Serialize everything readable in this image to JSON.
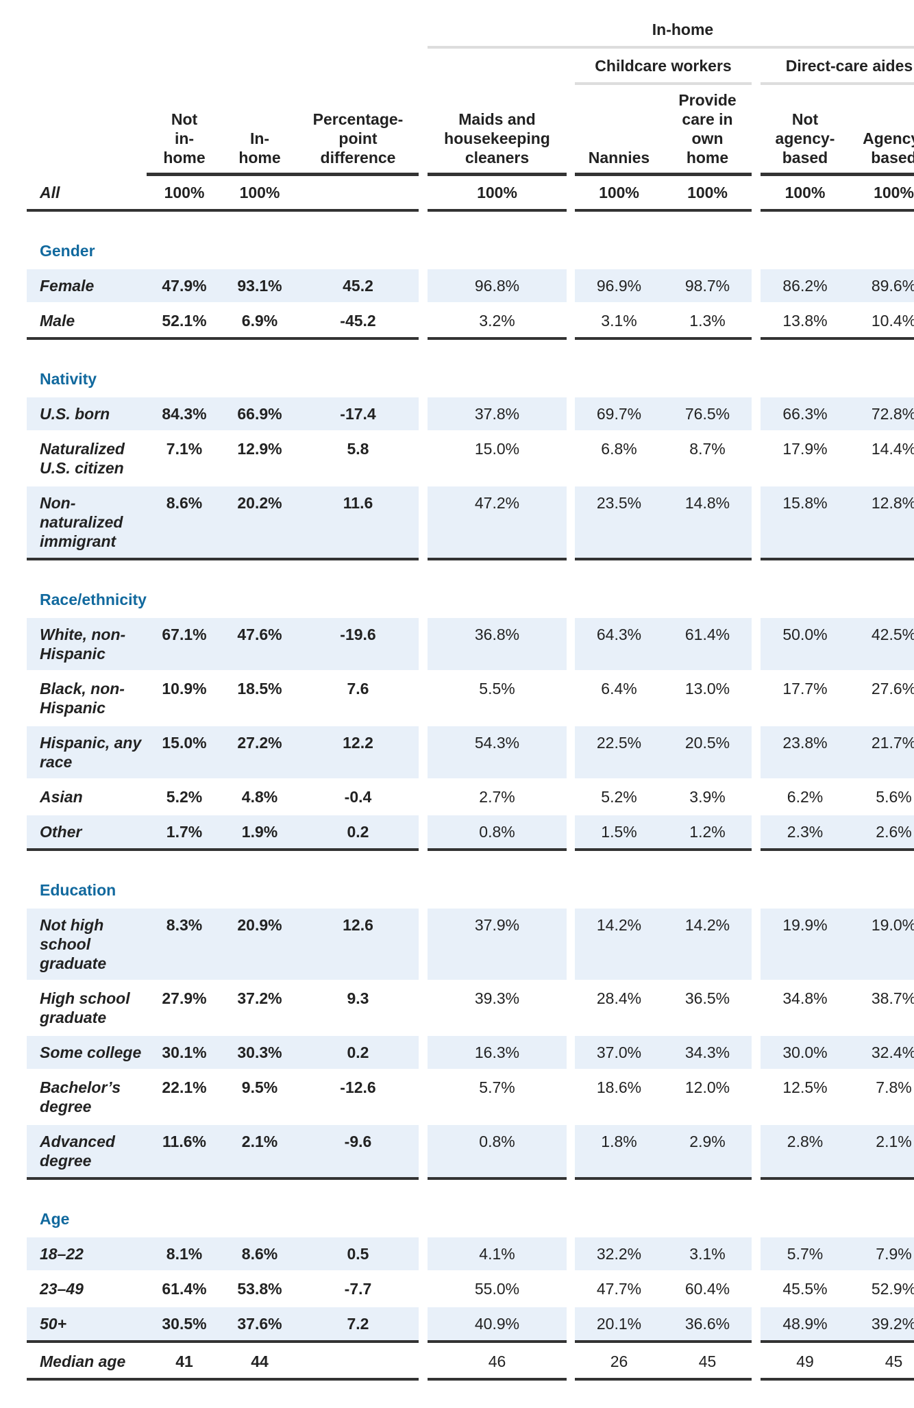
{
  "header": {
    "group": "In-home",
    "subgroups": [
      "Childcare workers",
      "Direct-care aides"
    ],
    "columns": [
      "Not in-home",
      "In-home",
      "Percentage-point difference",
      "Maids and housekeeping cleaners",
      "Nannies",
      "Provide care in own home",
      "Not agency-based",
      "Agency-based"
    ]
  },
  "all_row": {
    "label": "All",
    "values": [
      "100%",
      "100%",
      null,
      "100%",
      "100%",
      "100%",
      "100%",
      "100%"
    ]
  },
  "sections": [
    {
      "title": "Gender",
      "rows": [
        {
          "label": "Female",
          "values": [
            "47.9%",
            "93.1%",
            "45.2",
            "96.8%",
            "96.9%",
            "98.7%",
            "86.2%",
            "89.6%"
          ]
        },
        {
          "label": "Male",
          "values": [
            "52.1%",
            "6.9%",
            "-45.2",
            "3.2%",
            "3.1%",
            "1.3%",
            "13.8%",
            "10.4%"
          ]
        }
      ]
    },
    {
      "title": "Nativity",
      "rows": [
        {
          "label": "U.S. born",
          "values": [
            "84.3%",
            "66.9%",
            "-17.4",
            "37.8%",
            "69.7%",
            "76.5%",
            "66.3%",
            "72.8%"
          ]
        },
        {
          "label": "Naturalized U.S. citizen",
          "values": [
            "7.1%",
            "12.9%",
            "5.8",
            "15.0%",
            "6.8%",
            "8.7%",
            "17.9%",
            "14.4%"
          ]
        },
        {
          "label": "Non-naturalized immigrant",
          "values": [
            "8.6%",
            "20.2%",
            "11.6",
            "47.2%",
            "23.5%",
            "14.8%",
            "15.8%",
            "12.8%"
          ]
        }
      ]
    },
    {
      "title": "Race/ethnicity",
      "rows": [
        {
          "label": "White, non-Hispanic",
          "values": [
            "67.1%",
            "47.6%",
            "-19.6",
            "36.8%",
            "64.3%",
            "61.4%",
            "50.0%",
            "42.5%"
          ]
        },
        {
          "label": "Black, non-Hispanic",
          "values": [
            "10.9%",
            "18.5%",
            "7.6",
            "5.5%",
            "6.4%",
            "13.0%",
            "17.7%",
            "27.6%"
          ]
        },
        {
          "label": "Hispanic, any race",
          "values": [
            "15.0%",
            "27.2%",
            "12.2",
            "54.3%",
            "22.5%",
            "20.5%",
            "23.8%",
            "21.7%"
          ]
        },
        {
          "label": "Asian",
          "values": [
            "5.2%",
            "4.8%",
            "-0.4",
            "2.7%",
            "5.2%",
            "3.9%",
            "6.2%",
            "5.6%"
          ]
        },
        {
          "label": "Other",
          "values": [
            "1.7%",
            "1.9%",
            "0.2",
            "0.8%",
            "1.5%",
            "1.2%",
            "2.3%",
            "2.6%"
          ]
        }
      ]
    },
    {
      "title": "Education",
      "rows": [
        {
          "label": "Not high school graduate",
          "values": [
            "8.3%",
            "20.9%",
            "12.6",
            "37.9%",
            "14.2%",
            "14.2%",
            "19.9%",
            "19.0%"
          ]
        },
        {
          "label": "High school graduate",
          "values": [
            "27.9%",
            "37.2%",
            "9.3",
            "39.3%",
            "28.4%",
            "36.5%",
            "34.8%",
            "38.7%"
          ]
        },
        {
          "label": "Some college",
          "values": [
            "30.1%",
            "30.3%",
            "0.2",
            "16.3%",
            "37.0%",
            "34.3%",
            "30.0%",
            "32.4%"
          ]
        },
        {
          "label": "Bachelor’s degree",
          "values": [
            "22.1%",
            "9.5%",
            "-12.6",
            "5.7%",
            "18.6%",
            "12.0%",
            "12.5%",
            "7.8%"
          ]
        },
        {
          "label": "Advanced degree",
          "values": [
            "11.6%",
            "2.1%",
            "-9.6",
            "0.8%",
            "1.8%",
            "2.9%",
            "2.8%",
            "2.1%"
          ]
        }
      ]
    },
    {
      "title": "Age",
      "rows": [
        {
          "label": "18–22",
          "values": [
            "8.1%",
            "8.6%",
            "0.5",
            "4.1%",
            "32.2%",
            "3.1%",
            "5.7%",
            "7.9%"
          ]
        },
        {
          "label": "23–49",
          "values": [
            "61.4%",
            "53.8%",
            "-7.7",
            "55.0%",
            "47.7%",
            "60.4%",
            "45.5%",
            "52.9%"
          ]
        },
        {
          "label": "50+",
          "values": [
            "30.5%",
            "37.6%",
            "7.2",
            "40.9%",
            "20.1%",
            "36.6%",
            "48.9%",
            "39.2%"
          ]
        }
      ]
    }
  ],
  "median_row": {
    "label": "Median age",
    "values": [
      "41",
      "44",
      null,
      "46",
      "26",
      "45",
      "49",
      "45"
    ]
  }
}
